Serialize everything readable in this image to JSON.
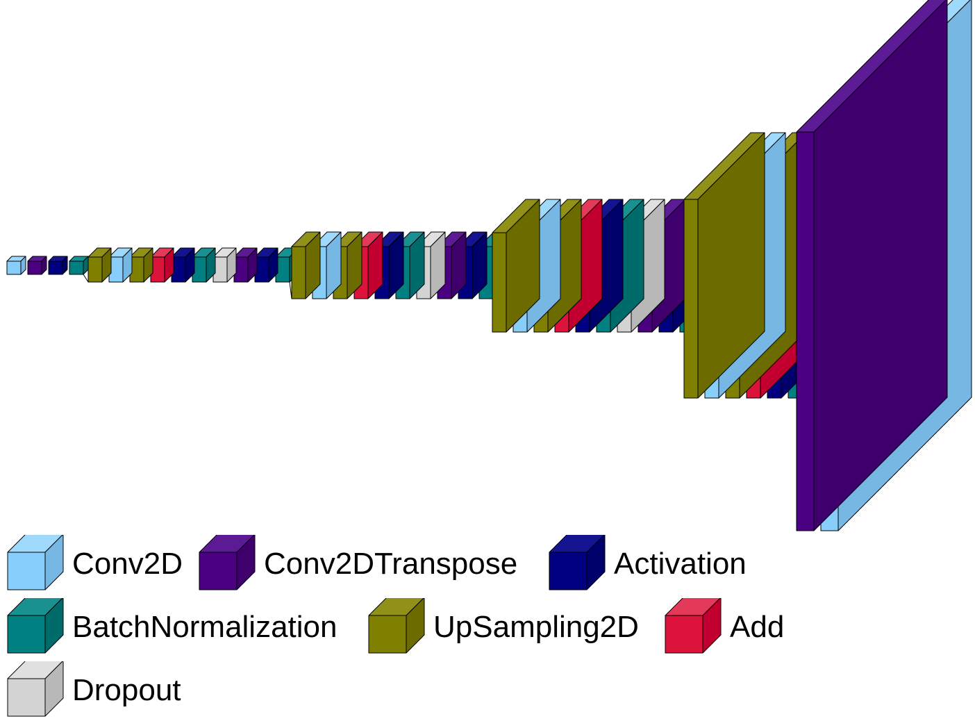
{
  "layer_types": {
    "conv2d": {
      "label": "Conv2D",
      "front": "#87cefa",
      "side": "#76b7e3",
      "top": "#9fd9fb"
    },
    "conv2dT": {
      "label": "Conv2DTranspose",
      "front": "#4b0082",
      "side": "#3f006d",
      "top": "#5c1b94"
    },
    "act": {
      "label": "Activation",
      "front": "#000080",
      "side": "#00006a",
      "top": "#141490"
    },
    "bn": {
      "label": "BatchNormalization",
      "front": "#008080",
      "side": "#006b6b",
      "top": "#199191"
    },
    "up": {
      "label": "UpSampling2D",
      "front": "#808000",
      "side": "#6b6b00",
      "top": "#919119"
    },
    "add": {
      "label": "Add",
      "front": "#dc143c",
      "side": "#c20030",
      "top": "#e43a5a"
    },
    "dropout": {
      "label": "Dropout",
      "front": "#d3d3d3",
      "side": "#b8b8b8",
      "top": "#e0e0e0"
    }
  },
  "legend_order": [
    "conv2d",
    "conv2dT",
    "act",
    "bn",
    "up",
    "add",
    "dropout"
  ],
  "groups": [
    [
      "conv2d",
      "conv2dT",
      "act",
      "bn"
    ],
    [
      "up",
      "conv2d",
      "up",
      "add",
      "act",
      "bn",
      "dropout",
      "conv2dT",
      "act",
      "bn"
    ],
    [
      "up",
      "conv2d",
      "up",
      "add",
      "act",
      "bn",
      "dropout",
      "conv2dT",
      "act",
      "bn"
    ],
    [
      "up",
      "conv2d",
      "up",
      "add",
      "act",
      "bn",
      "dropout",
      "conv2dT",
      "act",
      "bn"
    ],
    [
      "up",
      "conv2d",
      "up",
      "add",
      "act",
      "bn"
    ],
    [
      "conv2dT",
      "conv2d"
    ]
  ]
}
